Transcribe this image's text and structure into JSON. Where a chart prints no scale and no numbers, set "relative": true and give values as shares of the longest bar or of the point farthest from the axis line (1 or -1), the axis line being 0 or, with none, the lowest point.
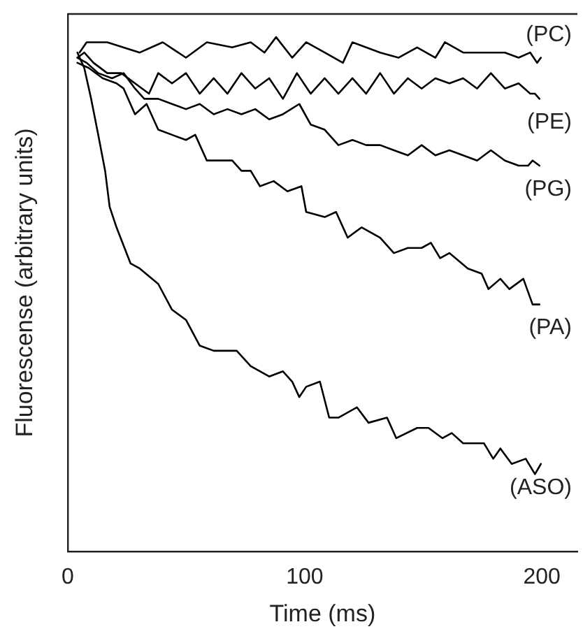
{
  "chart_data": {
    "type": "line",
    "xlabel": "Time (ms)",
    "ylabel": "Fluorescense (arbitrary units)",
    "relative": true,
    "xlim": [
      0,
      215
    ],
    "xticks": [
      0,
      100,
      200
    ],
    "grid": false,
    "legend": false,
    "marker": "none",
    "line_style": "solid",
    "series": [
      {
        "name": "(PC)",
        "color": "#000000",
        "x": [
          5.0,
          8.0,
          16.7,
          30.4,
          40.1,
          49.9,
          58.7,
          69.4,
          77.2,
          83.0,
          87.9,
          94.7,
          100.6,
          108.4,
          116.1,
          120.1,
          131.8,
          139.5,
          147.4,
          155.1,
          159.1,
          166.8,
          174.6,
          184.4,
          190.2,
          195.1,
          198.0,
          199.6
        ],
        "values": [
          0.97,
          0.99,
          0.99,
          0.97,
          0.99,
          0.96,
          0.99,
          0.98,
          0.99,
          0.97,
          1.0,
          0.96,
          0.99,
          0.97,
          0.95,
          0.99,
          0.97,
          0.96,
          0.98,
          0.96,
          0.99,
          0.97,
          0.97,
          0.97,
          0.96,
          0.97,
          0.95,
          0.96
        ]
      },
      {
        "name": "(PE)",
        "color": "#000000",
        "x": [
          4.1,
          7.0,
          10.9,
          16.7,
          22.6,
          28.4,
          34.3,
          38.2,
          44.0,
          49.9,
          55.7,
          61.6,
          67.4,
          73.3,
          79.1,
          85.0,
          90.8,
          96.7,
          102.5,
          108.4,
          114.2,
          120.1,
          125.9,
          131.8,
          137.6,
          143.5,
          149.3,
          155.1,
          161.0,
          166.8,
          172.7,
          178.5,
          184.4,
          190.2,
          195.1,
          197.1,
          199.0
        ],
        "values": [
          0.96,
          0.97,
          0.95,
          0.93,
          0.93,
          0.91,
          0.89,
          0.93,
          0.91,
          0.93,
          0.89,
          0.92,
          0.89,
          0.93,
          0.9,
          0.92,
          0.88,
          0.93,
          0.89,
          0.92,
          0.89,
          0.92,
          0.89,
          0.93,
          0.89,
          0.92,
          0.9,
          0.92,
          0.91,
          0.92,
          0.9,
          0.93,
          0.9,
          0.91,
          0.89,
          0.89,
          0.88
        ]
      },
      {
        "name": "(PG)",
        "color": "#000000",
        "x": [
          4.1,
          8.0,
          12.9,
          18.7,
          23.6,
          28.4,
          32.3,
          38.2,
          44.0,
          49.9,
          55.7,
          61.6,
          67.4,
          73.3,
          79.1,
          85.0,
          90.8,
          97.7,
          102.5,
          108.4,
          114.2,
          120.1,
          125.9,
          131.8,
          137.6,
          143.5,
          149.3,
          155.1,
          161.0,
          166.8,
          172.7,
          178.5,
          184.4,
          190.2,
          194.2,
          196.1,
          199.0
        ],
        "values": [
          0.96,
          0.95,
          0.93,
          0.92,
          0.93,
          0.9,
          0.88,
          0.88,
          0.87,
          0.86,
          0.87,
          0.85,
          0.86,
          0.85,
          0.86,
          0.84,
          0.85,
          0.87,
          0.83,
          0.82,
          0.79,
          0.8,
          0.79,
          0.79,
          0.78,
          0.77,
          0.79,
          0.77,
          0.78,
          0.77,
          0.76,
          0.78,
          0.76,
          0.75,
          0.75,
          0.76,
          0.75
        ]
      },
      {
        "name": "(PA)",
        "color": "#000000",
        "x": [
          4.1,
          8.9,
          14.8,
          20.6,
          23.6,
          28.4,
          33.3,
          38.2,
          44.0,
          49.9,
          53.8,
          58.7,
          63.5,
          69.4,
          73.3,
          77.2,
          81.1,
          86.9,
          92.7,
          98.6,
          100.6,
          108.4,
          113.2,
          118.1,
          124.0,
          131.8,
          137.6,
          143.5,
          149.3,
          153.2,
          157.1,
          161.0,
          168.8,
          174.6,
          177.5,
          182.5,
          186.3,
          192.2,
          196.1,
          199.0
        ],
        "values": [
          0.95,
          0.94,
          0.92,
          0.91,
          0.9,
          0.85,
          0.87,
          0.82,
          0.81,
          0.8,
          0.81,
          0.76,
          0.76,
          0.76,
          0.74,
          0.74,
          0.71,
          0.72,
          0.7,
          0.71,
          0.66,
          0.65,
          0.66,
          0.61,
          0.63,
          0.61,
          0.58,
          0.59,
          0.59,
          0.6,
          0.57,
          0.58,
          0.55,
          0.54,
          0.51,
          0.53,
          0.51,
          0.53,
          0.48,
          0.48
        ]
      },
      {
        "name": "(ASO)",
        "color": "#000000",
        "x": [
          4.1,
          7.0,
          9.9,
          12.9,
          15.8,
          17.7,
          20.6,
          26.5,
          30.4,
          38.2,
          44.0,
          49.9,
          55.7,
          61.6,
          71.3,
          77.2,
          85.0,
          90.8,
          94.7,
          97.7,
          100.6,
          106.4,
          110.3,
          114.2,
          122.0,
          126.9,
          134.7,
          138.6,
          147.4,
          152.2,
          158.1,
          162.0,
          166.8,
          175.6,
          179.5,
          182.5,
          187.3,
          193.2,
          197.1,
          199.6
        ],
        "values": [
          0.97,
          0.94,
          0.88,
          0.81,
          0.74,
          0.67,
          0.63,
          0.56,
          0.55,
          0.52,
          0.47,
          0.45,
          0.4,
          0.39,
          0.39,
          0.36,
          0.34,
          0.35,
          0.33,
          0.3,
          0.32,
          0.33,
          0.26,
          0.26,
          0.28,
          0.25,
          0.26,
          0.22,
          0.24,
          0.24,
          0.22,
          0.23,
          0.21,
          0.21,
          0.18,
          0.2,
          0.17,
          0.18,
          0.15,
          0.17
        ]
      }
    ]
  }
}
